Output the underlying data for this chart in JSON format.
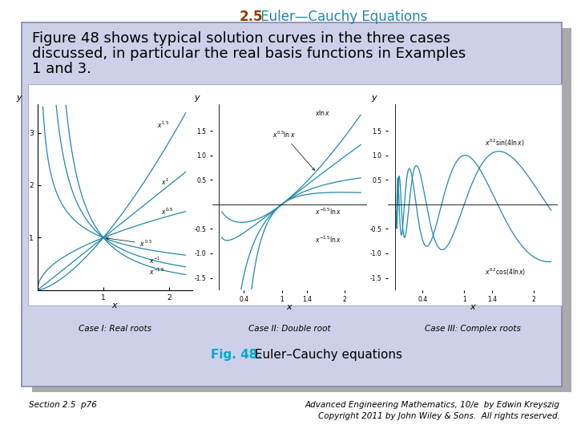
{
  "title_bold": "2.5",
  "title_rest": " Euler—Cauchy Equations",
  "title_color_bold": "#8B3A00",
  "title_color_rest": "#2288AA",
  "background_color": "#FFFFFF",
  "box_bg": "#CDD0E8",
  "box_border_color": "#8888AA",
  "main_text_line1": "Figure 48 shows typical solution curves in the three cases",
  "main_text_line2": "discussed, in particular the real basis functions in Examples",
  "main_text_line3": "1 and 3.",
  "fig_caption_bold": "Fig. 48.",
  "fig_caption_rest": " Euler–Cauchy equations",
  "fig_caption_color": "#00AACC",
  "footer_left": "Section 2.5  p76",
  "footer_right_line1": "Advanced Engineering Mathematics, 10/e  by Edwin Kreyszig",
  "footer_right_line2": "Copyright 2011 by John Wiley & Sons.  All rights reserved.",
  "image_bg": "#FFFFFF",
  "curve_color": "#2288AA",
  "plot_border_color": "#AAAACC",
  "shadow_color": "#AAAAAA"
}
